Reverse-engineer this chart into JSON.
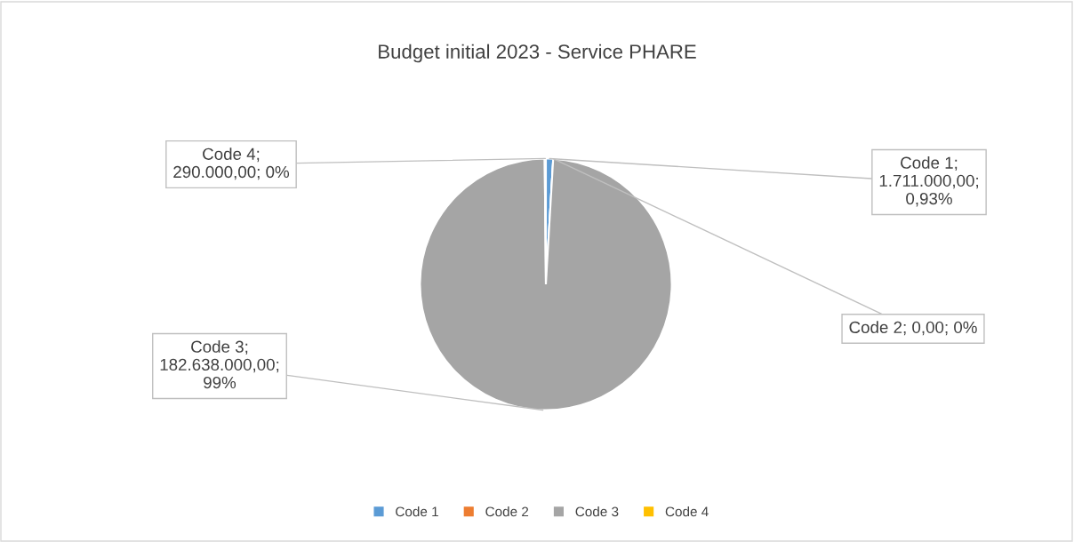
{
  "chart_data": {
    "type": "pie",
    "title": "Budget initial 2023 - Service PHARE",
    "categories": [
      "Code 1",
      "Code 2",
      "Code 3",
      "Code 4"
    ],
    "values": [
      1711000,
      0,
      182638000,
      290000
    ],
    "colors": [
      "#5b9bd5",
      "#ed7d31",
      "#a5a5a5",
      "#ffc000"
    ],
    "value_labels": [
      "Code 1;\n1.711.000,00;\n0,93%",
      "Code 2; 0,00; 0%",
      "Code 3;\n182.638.000,00;\n99%",
      "Code 4;\n290.000,00; 0%"
    ],
    "legend": "bottom"
  }
}
